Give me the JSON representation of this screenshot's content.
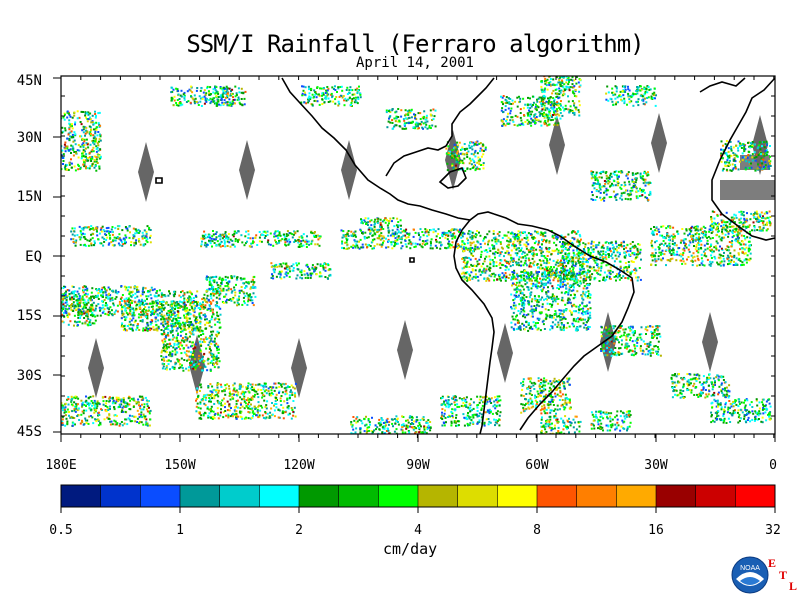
{
  "title": "SSM/I Rainfall (Ferraro algorithm)",
  "subtitle": "April 14, 2001",
  "lat_labels": [
    "45N",
    "30N",
    "15N",
    "EQ",
    "15S",
    "30S",
    "45S"
  ],
  "lon_labels": [
    "180E",
    "150W",
    "120W",
    "90W",
    "60W",
    "30W",
    "0"
  ],
  "colorbar": {
    "unit": "cm/day",
    "tick_labels": [
      "0.5",
      "1",
      "2",
      "4",
      "8",
      "16",
      "32"
    ],
    "colors": [
      "#001a7f",
      "#0033cc",
      "#0a4dff",
      "#009999",
      "#00cccc",
      "#00ffff",
      "#009900",
      "#00bb00",
      "#00ff00",
      "#b5b500",
      "#dddd00",
      "#ffff00",
      "#ff5500",
      "#ff7f00",
      "#ffaa00",
      "#990000",
      "#cc0000",
      "#ff0000"
    ]
  },
  "map_colors": {
    "land_outline": "#000000",
    "swath_gap": "#666666"
  },
  "logo": {
    "agency": "NOAA",
    "lab_letters": [
      "E",
      "T",
      "L"
    ],
    "icon": "noaa-logo-icon"
  }
}
